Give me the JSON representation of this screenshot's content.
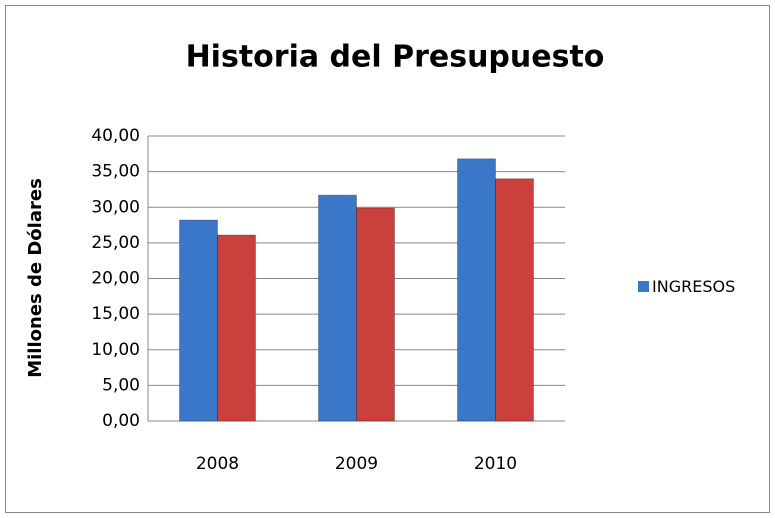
{
  "chart_data": {
    "type": "bar",
    "title": "Historia del Presupuesto",
    "y_label": "Millones de Dólares",
    "categories": [
      "2008",
      "2009",
      "2010"
    ],
    "series": [
      {
        "name": "INGRESOS",
        "color": "#3b77c8",
        "values": [
          28.2,
          31.7,
          36.8
        ]
      },
      {
        "color": "#c9403c",
        "values": [
          26.1,
          29.9,
          34.0
        ]
      }
    ],
    "ylim": [
      0,
      40
    ],
    "yticks": [
      {
        "value": 0,
        "label": "0,00"
      },
      {
        "value": 5,
        "label": "5,00"
      },
      {
        "value": 10,
        "label": "10,00"
      },
      {
        "value": 15,
        "label": "15,00"
      },
      {
        "value": 20,
        "label": "20,00"
      },
      {
        "value": 25,
        "label": "25,00"
      },
      {
        "value": 30,
        "label": "30,00"
      },
      {
        "value": 35,
        "label": "35,00"
      },
      {
        "value": 40,
        "label": "40,00"
      }
    ],
    "grid": true,
    "legend": "right"
  }
}
